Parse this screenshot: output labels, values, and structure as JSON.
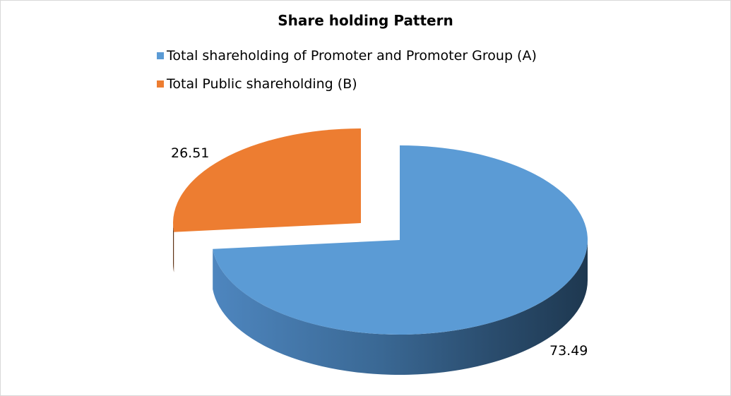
{
  "chart_data": {
    "type": "pie",
    "title": "Share holding  Pattern",
    "categories": [
      "Total shareholding of Promoter and Promoter Group (A)",
      "Total Public shareholding (B)"
    ],
    "values": [
      73.49,
      26.51
    ],
    "data_labels": [
      "73.49",
      "26.51"
    ],
    "colors": [
      "#5b9bd5",
      "#ed7d31"
    ],
    "style": "3d-exploded",
    "legend_position": "top"
  }
}
